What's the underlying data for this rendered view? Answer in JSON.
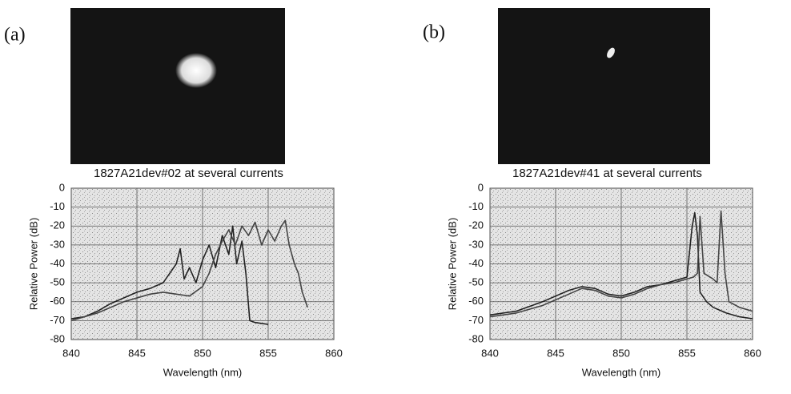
{
  "panel_labels": [
    "(a)",
    "(b)"
  ],
  "chart_data": [
    {
      "type": "line",
      "title": "1827A21dev#02 at several currents",
      "xlabel": "Wavelength (nm)",
      "ylabel": "Relative Power (dB)",
      "xlim": [
        840,
        860
      ],
      "xticks": [
        840,
        845,
        850,
        855,
        860
      ],
      "ylim": [
        -80,
        0
      ],
      "yticks": [
        0,
        -10,
        -20,
        -30,
        -40,
        -50,
        -60,
        -70,
        -80
      ],
      "grid": true,
      "series": [
        {
          "color": "#222222",
          "x": [
            840,
            841,
            842,
            843,
            844,
            845,
            846,
            847,
            847.5,
            848,
            848.3,
            848.6,
            849,
            849.5,
            850,
            850.5,
            851,
            851.5,
            852,
            852.3,
            852.6,
            853,
            853.3,
            853.6,
            854,
            855
          ],
          "values": [
            -69,
            -68,
            -65,
            -61,
            -58,
            -55,
            -53,
            -50,
            -45,
            -40,
            -32,
            -48,
            -42,
            -50,
            -38,
            -30,
            -42,
            -25,
            -35,
            -20,
            -40,
            -28,
            -45,
            -70,
            -71,
            -72
          ]
        },
        {
          "color": "#444444",
          "x": [
            840,
            842,
            844,
            846,
            847,
            848,
            849,
            850,
            850.5,
            851,
            851.5,
            852,
            852.5,
            853,
            853.5,
            854,
            854.5,
            855,
            855.5,
            856,
            856.3,
            856.6,
            857,
            857.3,
            857.6,
            858
          ],
          "values": [
            -70,
            -66,
            -60,
            -56,
            -55,
            -56,
            -57,
            -52,
            -45,
            -35,
            -28,
            -22,
            -30,
            -20,
            -25,
            -18,
            -30,
            -22,
            -28,
            -20,
            -17,
            -30,
            -40,
            -45,
            -55,
            -63
          ]
        }
      ]
    },
    {
      "type": "line",
      "title": "1827A21dev#41 at several currents",
      "xlabel": "Wavelength (nm)",
      "ylabel": "Relative Power (dB)",
      "xlim": [
        840,
        860
      ],
      "xticks": [
        840,
        845,
        850,
        855,
        860
      ],
      "ylim": [
        -80,
        0
      ],
      "yticks": [
        0,
        -10,
        -20,
        -30,
        -40,
        -50,
        -60,
        -70,
        -80
      ],
      "grid": true,
      "series": [
        {
          "color": "#222222",
          "x": [
            840,
            842,
            844,
            846,
            847,
            848,
            849,
            850,
            851,
            852,
            853,
            854,
            855,
            855.4,
            855.6,
            855.8,
            856,
            856.5,
            857,
            858,
            859,
            860
          ],
          "values": [
            -67,
            -65,
            -60,
            -54,
            -52,
            -53,
            -56,
            -57,
            -55,
            -52,
            -51,
            -49,
            -47,
            -20,
            -13,
            -25,
            -55,
            -60,
            -63,
            -66,
            -68,
            -69
          ]
        },
        {
          "color": "#444444",
          "x": [
            840,
            842,
            844,
            846,
            847,
            848,
            849,
            850,
            851,
            852,
            853,
            854,
            855,
            855.5,
            855.8,
            856,
            856.3,
            857,
            857.3,
            857.6,
            857.9,
            858.2,
            859,
            860
          ],
          "values": [
            -68,
            -66,
            -62,
            -56,
            -53,
            -54,
            -57,
            -58,
            -56,
            -53,
            -51,
            -50,
            -48,
            -47,
            -45,
            -15,
            -45,
            -48,
            -50,
            -12,
            -45,
            -60,
            -63,
            -65
          ]
        }
      ]
    }
  ]
}
